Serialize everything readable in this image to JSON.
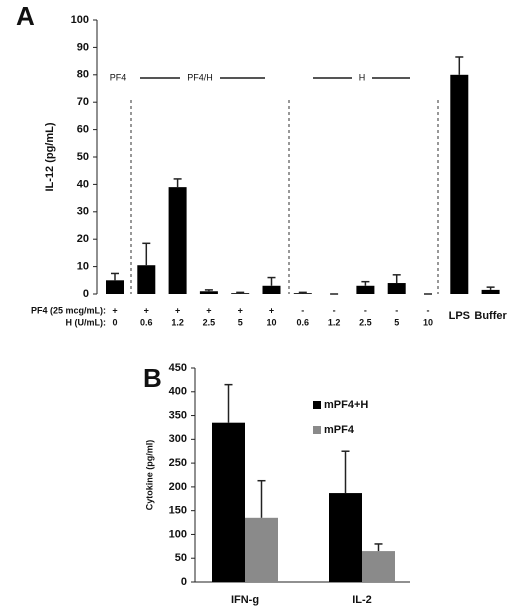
{
  "chart_data": [
    {
      "type": "bar",
      "panel_label": "A",
      "y_label": "IL-12 (pg/mL)",
      "categories": [
        null,
        null,
        null,
        null,
        null,
        null,
        null,
        null,
        null,
        null,
        null,
        "LPS",
        "Buffer"
      ],
      "values": [
        5,
        10.5,
        39,
        1,
        0.3,
        3,
        0.3,
        0,
        3,
        4,
        0,
        80,
        1.5
      ],
      "errors": [
        2.5,
        8,
        3,
        0.5,
        0.3,
        3,
        0.3,
        0,
        1.5,
        3,
        0,
        6.5,
        1
      ],
      "color": "#000000",
      "group_labels": [
        "PF4",
        "PF4/H",
        "H"
      ],
      "conditions": [
        {
          "label": "PF4 (25 mcg/mL):",
          "values": [
            "+",
            "+",
            "+",
            "+",
            "+",
            "+",
            "-",
            "-",
            "-",
            "-",
            "-"
          ]
        },
        {
          "label": "H (U/mL):",
          "values": [
            "0",
            "0.6",
            "1.2",
            "2.5",
            "5",
            "10",
            "0.6",
            "1.2",
            "2.5",
            "5",
            "10"
          ]
        }
      ],
      "ylim": [
        0,
        100
      ],
      "yticks": [
        0,
        10,
        20,
        30,
        40,
        50,
        60,
        70,
        80,
        90,
        100
      ]
    },
    {
      "type": "grouped-bar",
      "panel_label": "B",
      "y_label": "Cytokine (pg/ml)",
      "categories": [
        "IFN-g",
        "IL-2"
      ],
      "series": [
        {
          "name": "mPF4+H",
          "color": "#000000",
          "values": [
            335,
            187
          ],
          "errors": [
            80,
            88
          ]
        },
        {
          "name": "mPF4",
          "color": "#8a8a8a",
          "values": [
            135,
            65
          ],
          "errors": [
            78,
            15
          ]
        }
      ],
      "ylim": [
        0,
        450
      ],
      "yticks": [
        0,
        50,
        100,
        150,
        200,
        250,
        300,
        350,
        400,
        450
      ]
    }
  ]
}
